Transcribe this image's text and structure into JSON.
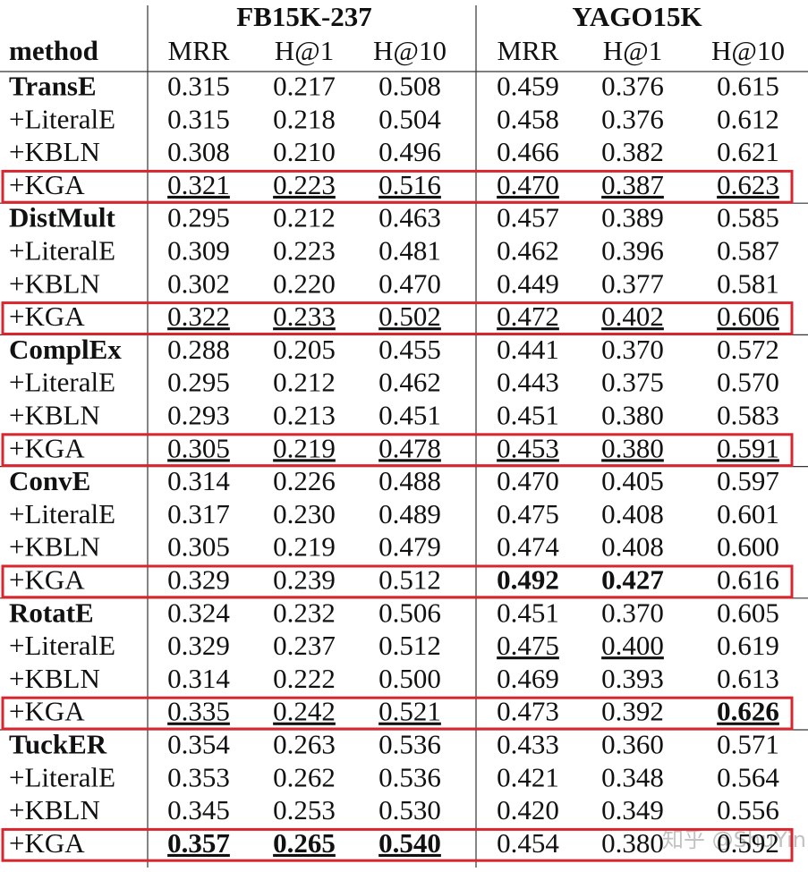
{
  "table": {
    "group_headers": [
      "FB15K-237",
      "YAGO15K"
    ],
    "columns": [
      "method",
      "MRR",
      "H@1",
      "H@10",
      "MRR",
      "H@1",
      "H@10"
    ],
    "rows": [
      [
        "TransE",
        "0.315",
        "0.217",
        "0.508",
        "0.459",
        "0.376",
        "0.615"
      ],
      [
        "+LiteralE",
        "0.315",
        "0.218",
        "0.504",
        "0.458",
        "0.376",
        "0.612"
      ],
      [
        "+KBLN",
        "0.308",
        "0.210",
        "0.496",
        "0.466",
        "0.382",
        "0.621"
      ],
      [
        "+KGA",
        "0.321",
        "0.223",
        "0.516",
        "0.470",
        "0.387",
        "0.623"
      ],
      [
        "DistMult",
        "0.295",
        "0.212",
        "0.463",
        "0.457",
        "0.389",
        "0.585"
      ],
      [
        "+LiteralE",
        "0.309",
        "0.223",
        "0.481",
        "0.462",
        "0.396",
        "0.587"
      ],
      [
        "+KBLN",
        "0.302",
        "0.220",
        "0.470",
        "0.449",
        "0.377",
        "0.581"
      ],
      [
        "+KGA",
        "0.322",
        "0.233",
        "0.502",
        "0.472",
        "0.402",
        "0.606"
      ],
      [
        "ComplEx",
        "0.288",
        "0.205",
        "0.455",
        "0.441",
        "0.370",
        "0.572"
      ],
      [
        "+LiteralE",
        "0.295",
        "0.212",
        "0.462",
        "0.443",
        "0.375",
        "0.570"
      ],
      [
        "+KBLN",
        "0.293",
        "0.213",
        "0.451",
        "0.451",
        "0.380",
        "0.583"
      ],
      [
        "+KGA",
        "0.305",
        "0.219",
        "0.478",
        "0.453",
        "0.380",
        "0.591"
      ],
      [
        "ConvE",
        "0.314",
        "0.226",
        "0.488",
        "0.470",
        "0.405",
        "0.597"
      ],
      [
        "+LiteralE",
        "0.317",
        "0.230",
        "0.489",
        "0.475",
        "0.408",
        "0.601"
      ],
      [
        "+KBLN",
        "0.305",
        "0.219",
        "0.479",
        "0.474",
        "0.408",
        "0.600"
      ],
      [
        "+KGA",
        "0.329",
        "0.239",
        "0.512",
        "0.492",
        "0.427",
        "0.616"
      ],
      [
        "RotatE",
        "0.324",
        "0.232",
        "0.506",
        "0.451",
        "0.370",
        "0.605"
      ],
      [
        "+LiteralE",
        "0.329",
        "0.237",
        "0.512",
        "0.475",
        "0.400",
        "0.619"
      ],
      [
        "+KBLN",
        "0.314",
        "0.222",
        "0.500",
        "0.469",
        "0.393",
        "0.613"
      ],
      [
        "+KGA",
        "0.335",
        "0.242",
        "0.521",
        "0.473",
        "0.392",
        "0.626"
      ],
      [
        "TuckER",
        "0.354",
        "0.263",
        "0.536",
        "0.433",
        "0.360",
        "0.571"
      ],
      [
        "+LiteralE",
        "0.353",
        "0.262",
        "0.536",
        "0.421",
        "0.348",
        "0.564"
      ],
      [
        "+KBLN",
        "0.345",
        "0.253",
        "0.530",
        "0.420",
        "0.349",
        "0.556"
      ],
      [
        "+KGA",
        "0.357",
        "0.265",
        "0.540",
        "0.454",
        "0.380",
        "0.592"
      ]
    ],
    "bold_cells": [
      [
        0,
        0
      ],
      [
        4,
        0
      ],
      [
        8,
        0
      ],
      [
        12,
        0
      ],
      [
        16,
        0
      ],
      [
        20,
        0
      ],
      [
        15,
        4
      ],
      [
        15,
        5
      ],
      [
        19,
        6
      ],
      [
        23,
        1
      ],
      [
        23,
        2
      ],
      [
        23,
        3
      ]
    ],
    "underline_cells": [
      [
        3,
        1
      ],
      [
        3,
        2
      ],
      [
        3,
        3
      ],
      [
        3,
        4
      ],
      [
        3,
        5
      ],
      [
        3,
        6
      ],
      [
        7,
        1
      ],
      [
        7,
        2
      ],
      [
        7,
        3
      ],
      [
        7,
        4
      ],
      [
        7,
        5
      ],
      [
        7,
        6
      ],
      [
        11,
        1
      ],
      [
        11,
        2
      ],
      [
        11,
        3
      ],
      [
        11,
        4
      ],
      [
        11,
        5
      ],
      [
        11,
        6
      ],
      [
        17,
        4
      ],
      [
        17,
        5
      ],
      [
        19,
        1
      ],
      [
        19,
        2
      ],
      [
        19,
        3
      ],
      [
        19,
        6
      ],
      [
        23,
        1
      ],
      [
        23,
        2
      ],
      [
        23,
        3
      ]
    ],
    "highlighted_rows": [
      3,
      7,
      11,
      15,
      19,
      23
    ],
    "highlight_color": "#d9262e"
  },
  "watermark": "知乎 @ShuYini"
}
